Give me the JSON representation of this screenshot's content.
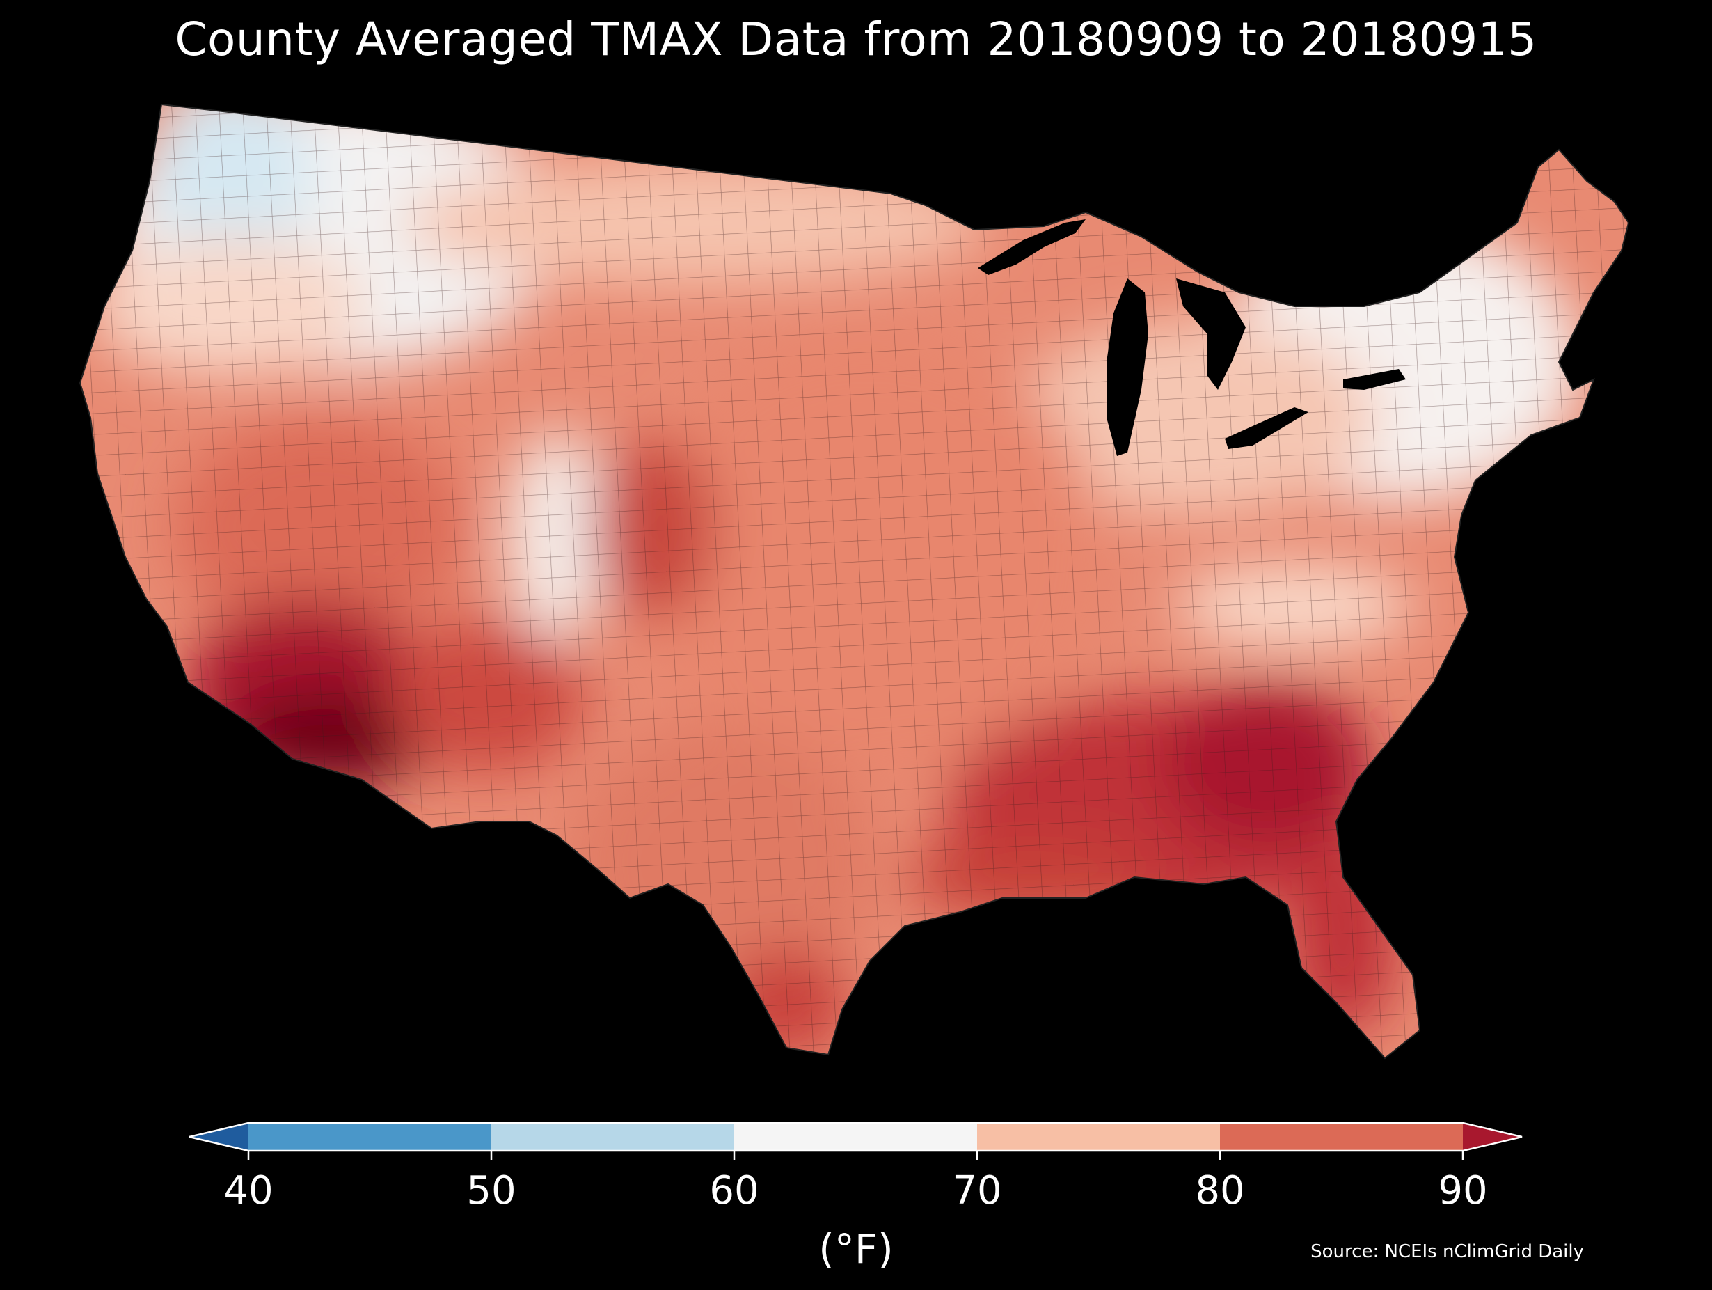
{
  "title": "County Averaged TMAX Data from 20180909 to 20180915",
  "colorbar": {
    "ticks": [
      "40",
      "50",
      "60",
      "70",
      "80",
      "90"
    ],
    "units": "(°F)",
    "bins": [
      {
        "from": null,
        "to": 40,
        "color": "#1f5c9e"
      },
      {
        "from": 40,
        "to": 50,
        "color": "#4a97c9"
      },
      {
        "from": 50,
        "to": 60,
        "color": "#b6d7e8"
      },
      {
        "from": 60,
        "to": 70,
        "color": "#f5f5f5"
      },
      {
        "from": 70,
        "to": 80,
        "color": "#f7bfa5"
      },
      {
        "from": 80,
        "to": 90,
        "color": "#dc6a56"
      },
      {
        "from": 90,
        "to": null,
        "color": "#a8182e"
      }
    ]
  },
  "source": "Source: NCEIs nClimGrid Daily",
  "colors": {
    "background": "#000000",
    "cool": "#d6e8f2",
    "mild": "#f5f3f2",
    "warm": "#f5b79d",
    "hot": "#dc6a56",
    "very_hot": "#b21f2d",
    "extreme": "#6e0019"
  }
}
